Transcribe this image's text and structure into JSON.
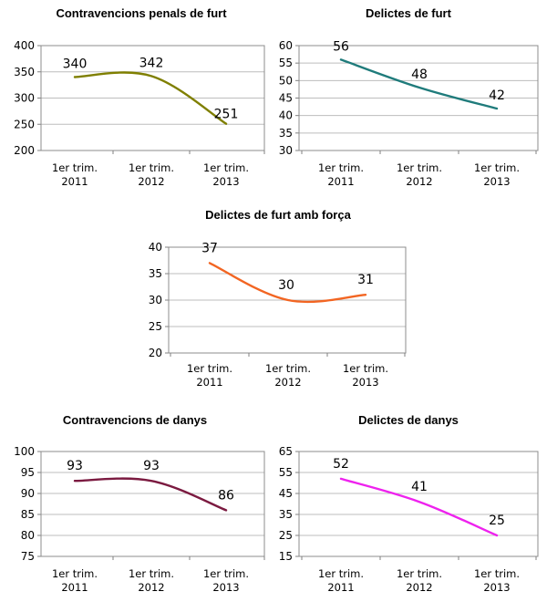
{
  "chart_data": [
    {
      "type": "line",
      "title": "Contravencions penals de furt",
      "categories": [
        [
          "1er trim.",
          "2011"
        ],
        [
          "1er trim.",
          "2012"
        ],
        [
          "1er trim.",
          "2013"
        ]
      ],
      "series": [
        {
          "values": [
            340,
            342,
            251
          ],
          "color": "#7f7f00"
        }
      ],
      "ylim": [
        200,
        400
      ],
      "yticks": [
        200,
        250,
        300,
        350,
        400
      ],
      "grid": true,
      "smooth": true
    },
    {
      "type": "line",
      "title": "Delictes de furt",
      "categories": [
        [
          "1er trim.",
          "2011"
        ],
        [
          "1er trim.",
          "2012"
        ],
        [
          "1er trim.",
          "2013"
        ]
      ],
      "series": [
        {
          "values": [
            56,
            48,
            42
          ],
          "color": "#1f7b7b"
        }
      ],
      "ylim": [
        30,
        60
      ],
      "yticks": [
        30,
        35,
        40,
        45,
        50,
        55,
        60
      ],
      "grid": true,
      "smooth": true
    },
    {
      "type": "line",
      "title": "Delictes de furt amb força",
      "categories": [
        [
          "1er trim.",
          "2011"
        ],
        [
          "1er trim.",
          "2012"
        ],
        [
          "1er trim.",
          "2013"
        ]
      ],
      "series": [
        {
          "values": [
            37,
            30,
            31
          ],
          "color": "#f26522"
        }
      ],
      "ylim": [
        20,
        40
      ],
      "yticks": [
        20,
        25,
        30,
        35,
        40
      ],
      "grid": true,
      "smooth": true
    },
    {
      "type": "line",
      "title": "Contravencions de danys",
      "categories": [
        [
          "1er trim.",
          "2011"
        ],
        [
          "1er trim.",
          "2012"
        ],
        [
          "1er trim.",
          "2013"
        ]
      ],
      "series": [
        {
          "values": [
            93,
            93,
            86
          ],
          "color": "#7b1a40"
        }
      ],
      "ylim": [
        75,
        100
      ],
      "yticks": [
        75,
        80,
        85,
        90,
        95,
        100
      ],
      "grid": true,
      "smooth": true
    },
    {
      "type": "line",
      "title": "Delictes de danys",
      "categories": [
        [
          "1er trim.",
          "2011"
        ],
        [
          "1er trim.",
          "2012"
        ],
        [
          "1er trim.",
          "2013"
        ]
      ],
      "series": [
        {
          "values": [
            52,
            41,
            25
          ],
          "color": "#ee22ee"
        }
      ],
      "ylim": [
        15,
        65
      ],
      "yticks": [
        15,
        25,
        35,
        45,
        55,
        65
      ],
      "grid": true,
      "smooth": true
    }
  ]
}
